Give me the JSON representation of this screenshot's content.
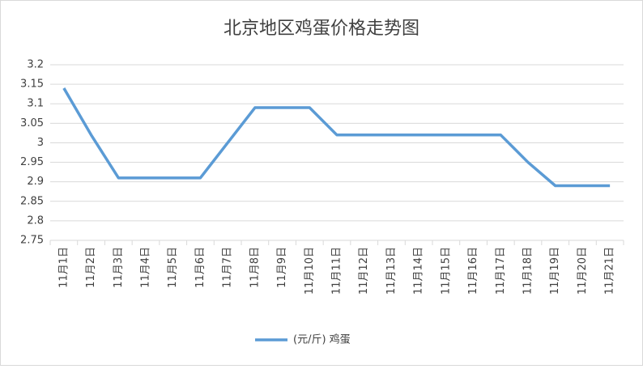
{
  "chart_data": {
    "type": "line",
    "title": "北京地区鸡蛋价格走势图",
    "categories": [
      "11月1日",
      "11月2日",
      "11月3日",
      "11月4日",
      "11月5日",
      "11月6日",
      "11月7日",
      "11月8日",
      "11月9日",
      "11月10日",
      "11月11日",
      "11月12日",
      "11月13日",
      "11月14日",
      "11月15日",
      "11月16日",
      "11月17日",
      "11月18日",
      "11月19日",
      "11月20日",
      "11月21日"
    ],
    "series": [
      {
        "name": "(元/斤) 鸡蛋",
        "color": "#5b9bd5",
        "values": [
          3.14,
          3.02,
          2.91,
          2.91,
          2.91,
          2.91,
          3.0,
          3.09,
          3.09,
          3.09,
          3.02,
          3.02,
          3.02,
          3.02,
          3.02,
          3.02,
          3.02,
          2.95,
          2.89,
          2.89,
          2.89
        ]
      }
    ],
    "ylim": [
      2.75,
      3.2
    ],
    "yticks": [
      2.75,
      2.8,
      2.85,
      2.9,
      2.95,
      3,
      3.05,
      3.1,
      3.15,
      3.2
    ],
    "grid": true,
    "legend": "bottom"
  }
}
